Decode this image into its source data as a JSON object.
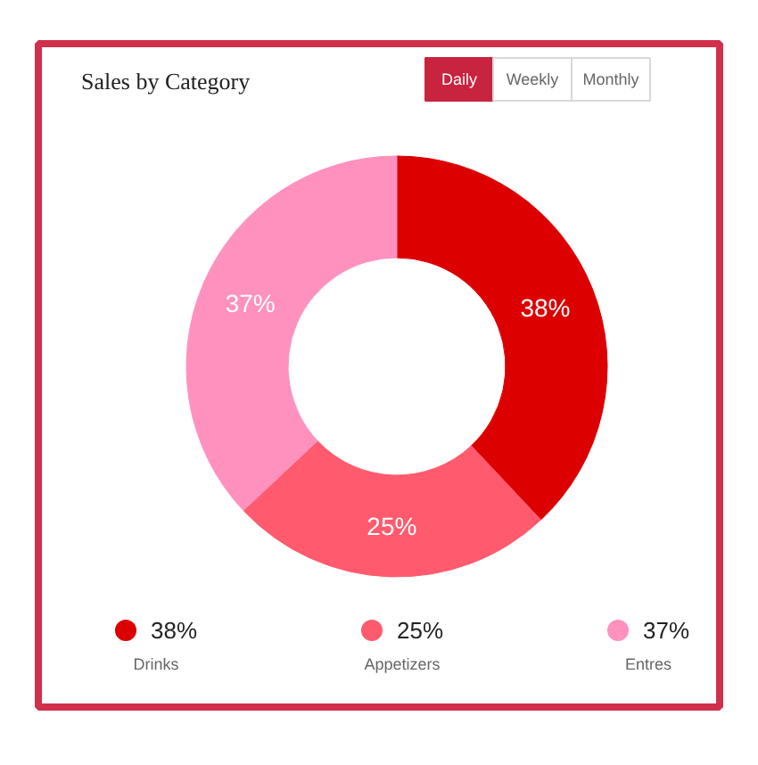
{
  "chart_data": {
    "type": "donut",
    "title": "Sales by Category",
    "categories": [
      "Drinks",
      "Appetizers",
      "Entres"
    ],
    "values": [
      38,
      25,
      37
    ],
    "value_labels": [
      "38%",
      "25%",
      "37%"
    ],
    "colors": [
      "#dc0000",
      "#ff5a6e",
      "#ff91bf"
    ],
    "legend": "bottom",
    "annotations": [
      "Daily",
      "Weekly",
      "Monthly"
    ]
  }
}
